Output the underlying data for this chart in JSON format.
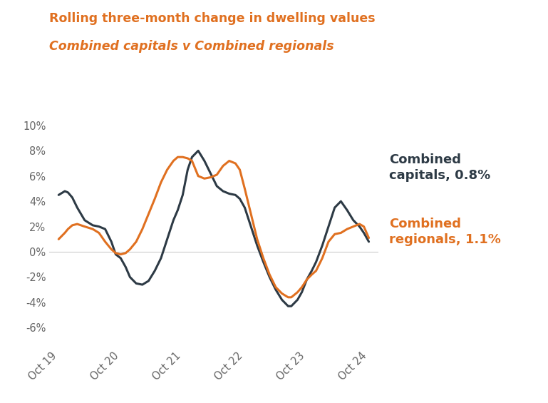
{
  "title_line1": "Rolling three-month change in dwelling values",
  "title_line2": "Combined capitals v Combined regionals",
  "title_color": "#E07020",
  "background_color": "#ffffff",
  "plot_bg_color": "#ffffff",
  "ylim": [
    -7.5,
    11
  ],
  "yticks": [
    -6,
    -4,
    -2,
    0,
    2,
    4,
    6,
    8,
    10
  ],
  "ytick_labels": [
    "-6%",
    "-4%",
    "-2%",
    "0%",
    "2%",
    "4%",
    "6%",
    "8%",
    "10%"
  ],
  "xtick_labels": [
    "Oct 19",
    "Oct 20",
    "Oct 21",
    "Oct 22",
    "Oct 23",
    "Oct 24"
  ],
  "label_capitals": "Combined\ncapitals, 0.8%",
  "label_regionals": "Combined\nregionals, 1.1%",
  "label_capitals_color": "#2d3a45",
  "label_regionals_color": "#E07020",
  "line_capitals_color": "#2d3a45",
  "line_regionals_color": "#E07020",
  "line_width": 2.2,
  "capitals_x": [
    0,
    0.1,
    0.15,
    0.22,
    0.3,
    0.42,
    0.55,
    0.65,
    0.75,
    0.85,
    0.92,
    1.0,
    1.08,
    1.15,
    1.25,
    1.35,
    1.45,
    1.55,
    1.65,
    1.75,
    1.85,
    1.92,
    2.0,
    2.08,
    2.15,
    2.25,
    2.35,
    2.45,
    2.55,
    2.65,
    2.75,
    2.85,
    2.92,
    3.0,
    3.1,
    3.2,
    3.3,
    3.4,
    3.5,
    3.6,
    3.7,
    3.75,
    3.85,
    3.92,
    4.0,
    4.08,
    4.15,
    4.25,
    4.35,
    4.45,
    4.55,
    4.65,
    4.75,
    4.85,
    4.92,
    5.0
  ],
  "capitals_y": [
    4.5,
    4.8,
    4.7,
    4.3,
    3.5,
    2.5,
    2.1,
    2.0,
    1.8,
    0.8,
    -0.2,
    -0.5,
    -1.2,
    -2.0,
    -2.5,
    -2.6,
    -2.3,
    -1.5,
    -0.5,
    1.0,
    2.5,
    3.3,
    4.5,
    6.5,
    7.5,
    8.0,
    7.2,
    6.2,
    5.2,
    4.8,
    4.6,
    4.5,
    4.2,
    3.5,
    2.0,
    0.5,
    -0.8,
    -2.0,
    -3.0,
    -3.8,
    -4.3,
    -4.3,
    -3.8,
    -3.2,
    -2.2,
    -1.5,
    -0.8,
    0.5,
    2.0,
    3.5,
    4.0,
    3.3,
    2.5,
    2.0,
    1.5,
    0.8
  ],
  "regionals_x": [
    0,
    0.1,
    0.15,
    0.22,
    0.3,
    0.42,
    0.55,
    0.65,
    0.75,
    0.85,
    0.92,
    1.0,
    1.08,
    1.15,
    1.25,
    1.35,
    1.45,
    1.55,
    1.65,
    1.75,
    1.85,
    1.92,
    2.0,
    2.08,
    2.15,
    2.25,
    2.35,
    2.45,
    2.55,
    2.65,
    2.75,
    2.85,
    2.92,
    3.0,
    3.1,
    3.2,
    3.3,
    3.4,
    3.5,
    3.6,
    3.7,
    3.75,
    3.85,
    3.92,
    4.0,
    4.08,
    4.15,
    4.25,
    4.35,
    4.45,
    4.55,
    4.65,
    4.75,
    4.85,
    4.92,
    5.0
  ],
  "regionals_y": [
    1.0,
    1.5,
    1.8,
    2.1,
    2.2,
    2.0,
    1.8,
    1.5,
    0.8,
    0.2,
    -0.1,
    -0.2,
    -0.1,
    0.2,
    0.8,
    1.8,
    3.0,
    4.2,
    5.5,
    6.5,
    7.2,
    7.5,
    7.5,
    7.4,
    7.2,
    6.0,
    5.8,
    5.9,
    6.1,
    6.8,
    7.2,
    7.0,
    6.5,
    5.0,
    3.0,
    1.0,
    -0.5,
    -1.8,
    -2.8,
    -3.3,
    -3.6,
    -3.6,
    -3.2,
    -2.8,
    -2.2,
    -1.8,
    -1.5,
    -0.5,
    0.8,
    1.4,
    1.5,
    1.8,
    2.0,
    2.2,
    2.0,
    1.1
  ]
}
